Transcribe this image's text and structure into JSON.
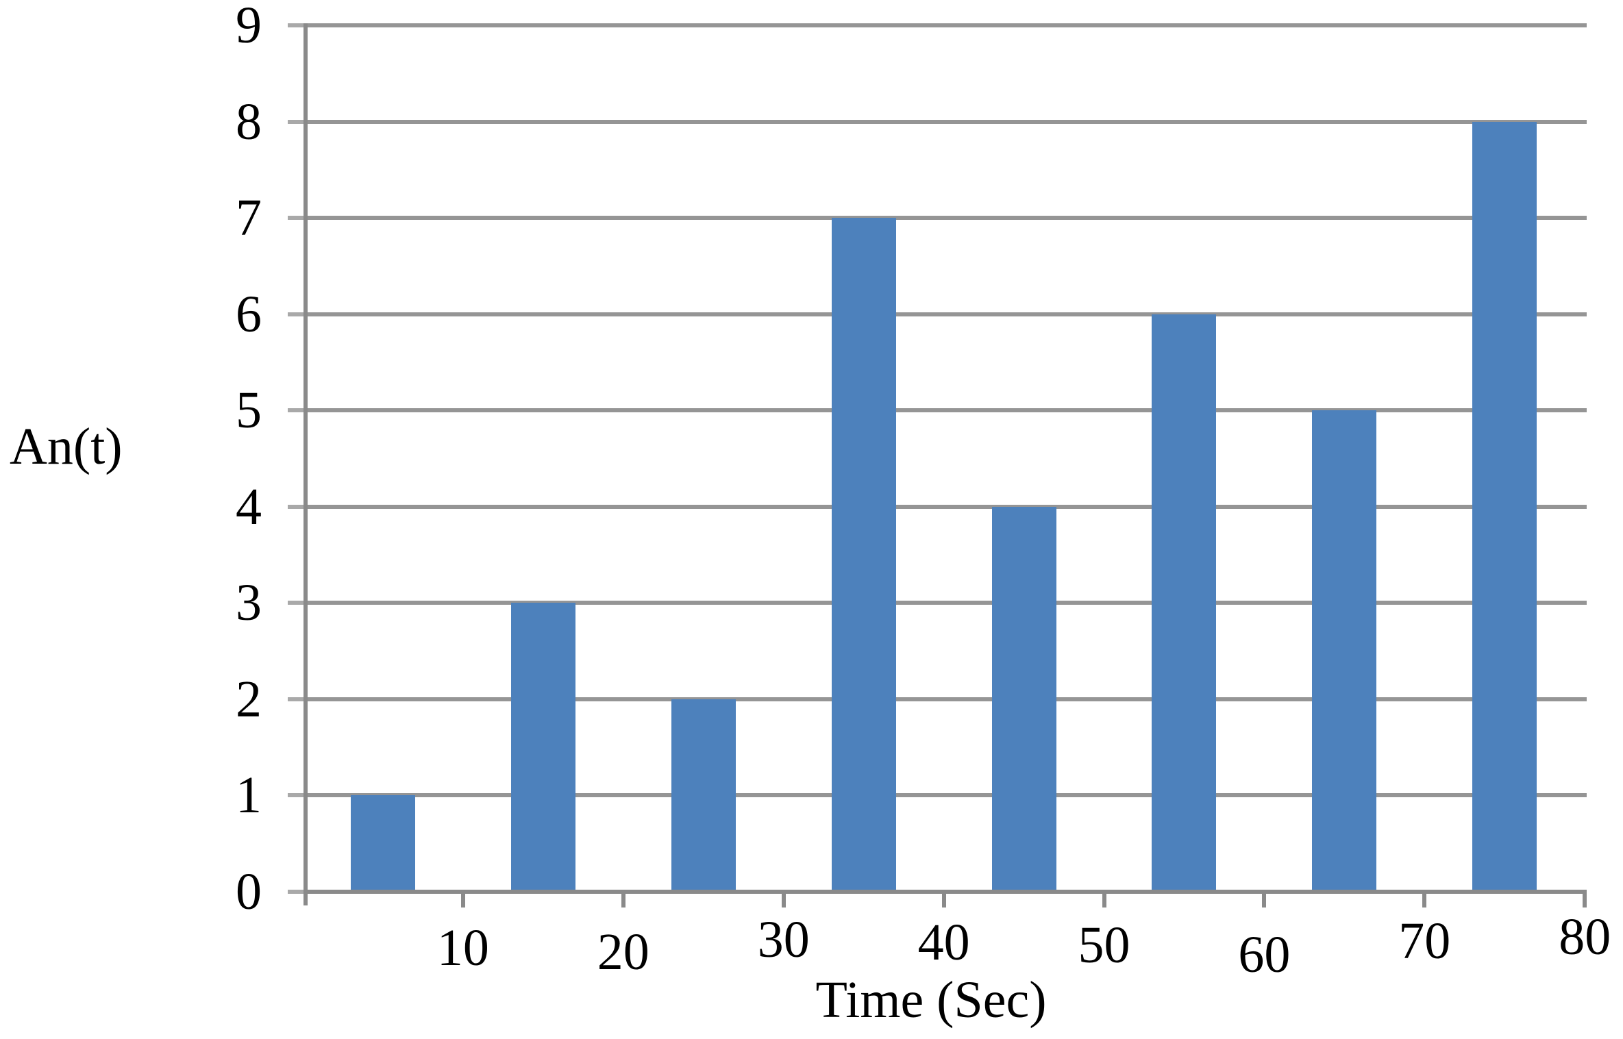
{
  "figure": {
    "background": "#ffffff"
  },
  "chart_data": {
    "type": "bar",
    "title": "",
    "xlabel": "Time (Sec)",
    "ylabel": "An(t)",
    "categories": [
      5,
      15,
      25,
      35,
      45,
      55,
      65,
      75
    ],
    "values": [
      1,
      3,
      2,
      7,
      4,
      6,
      5,
      8
    ],
    "xlim": [
      0,
      80
    ],
    "ylim": [
      0,
      9
    ],
    "xticks": [
      10,
      20,
      30,
      40,
      50,
      60,
      70,
      80
    ],
    "yticks": [
      0,
      1,
      2,
      3,
      4,
      5,
      6,
      7,
      8,
      9
    ],
    "grid": "horizontal",
    "legend": "none",
    "bar_color": "#4D81BC",
    "grid_color": "#959595",
    "axis_color": "#8A8A8A",
    "tick_stub_color": "#A9A9A9",
    "text_color": "#000000"
  }
}
